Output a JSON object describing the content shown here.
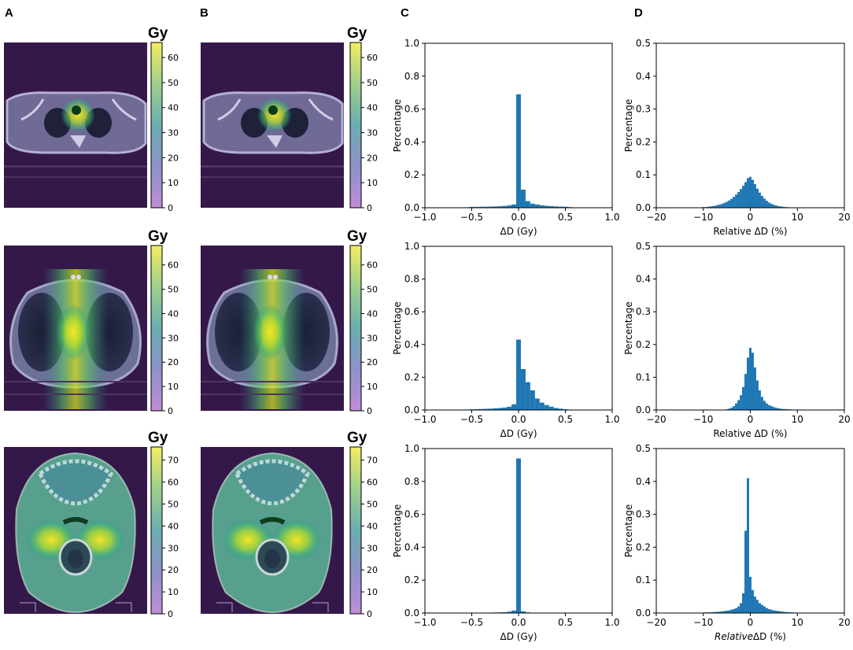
{
  "panel_labels": [
    "A",
    "B",
    "C",
    "D"
  ],
  "colorbars": {
    "unit": "Gy",
    "rows": [
      {
        "ticks": [
          "0",
          "10",
          "20",
          "30",
          "40",
          "50",
          "60"
        ],
        "max": 66
      },
      {
        "ticks": [
          "0",
          "10",
          "20",
          "30",
          "40",
          "50",
          "60"
        ],
        "max": 68
      },
      {
        "ticks": [
          "0",
          "10",
          "20",
          "30",
          "40",
          "50",
          "60",
          "70"
        ],
        "max": 76
      }
    ]
  },
  "ct_images": [
    {
      "row": 0,
      "site": "upper thorax / neck base axial slice"
    },
    {
      "row": 1,
      "site": "thorax axial slice"
    },
    {
      "row": 2,
      "site": "head axial slice"
    }
  ],
  "chart_data": [
    {
      "type": "bar",
      "panel": "C",
      "row": 0,
      "xlabel": "ΔD (Gy)",
      "ylabel": "Percentage",
      "xlim": [
        -1.0,
        1.0
      ],
      "ylim": [
        0.0,
        1.0
      ],
      "xticks": [
        "−1.0",
        "−0.5",
        "0.0",
        "0.5",
        "1.0"
      ],
      "yticks": [
        "0.0",
        "0.2",
        "0.4",
        "0.6",
        "0.8",
        "1.0"
      ],
      "bin_width": 0.05,
      "bins": [
        [
          -0.55,
          0.003
        ],
        [
          -0.5,
          0.005
        ],
        [
          -0.45,
          0.005
        ],
        [
          -0.4,
          0.006
        ],
        [
          -0.35,
          0.006
        ],
        [
          -0.3,
          0.007
        ],
        [
          -0.25,
          0.008
        ],
        [
          -0.2,
          0.009
        ],
        [
          -0.15,
          0.011
        ],
        [
          -0.1,
          0.014
        ],
        [
          -0.05,
          0.02
        ],
        [
          0.0,
          0.69
        ],
        [
          0.05,
          0.11
        ],
        [
          0.1,
          0.04
        ],
        [
          0.15,
          0.025
        ],
        [
          0.2,
          0.02
        ],
        [
          0.25,
          0.015
        ],
        [
          0.3,
          0.012
        ],
        [
          0.35,
          0.01
        ],
        [
          0.4,
          0.008
        ],
        [
          0.45,
          0.007
        ],
        [
          0.5,
          0.006
        ],
        [
          0.55,
          0.004
        ]
      ]
    },
    {
      "type": "bar",
      "panel": "D",
      "row": 0,
      "xlabel": "Relative ΔD (%)",
      "ylabel": "Percentage",
      "xlim": [
        -20,
        20
      ],
      "ylim": [
        0.0,
        0.5
      ],
      "xticks": [
        "−20",
        "−10",
        "0",
        "10",
        "20"
      ],
      "yticks": [
        "0.0",
        "0.1",
        "0.2",
        "0.3",
        "0.4",
        "0.5"
      ],
      "bin_width": 0.5,
      "bins": [
        [
          -11.0,
          0.001
        ],
        [
          -10.5,
          0.001
        ],
        [
          -10.0,
          0.002
        ],
        [
          -9.5,
          0.002
        ],
        [
          -9.0,
          0.003
        ],
        [
          -8.5,
          0.004
        ],
        [
          -8.0,
          0.005
        ],
        [
          -7.5,
          0.006
        ],
        [
          -7.0,
          0.008
        ],
        [
          -6.5,
          0.01
        ],
        [
          -6.0,
          0.012
        ],
        [
          -5.5,
          0.015
        ],
        [
          -5.0,
          0.018
        ],
        [
          -4.5,
          0.022
        ],
        [
          -4.0,
          0.027
        ],
        [
          -3.5,
          0.033
        ],
        [
          -3.0,
          0.04
        ],
        [
          -2.5,
          0.048
        ],
        [
          -2.0,
          0.057
        ],
        [
          -1.5,
          0.067
        ],
        [
          -1.0,
          0.078
        ],
        [
          -0.5,
          0.09
        ],
        [
          0.0,
          0.094
        ],
        [
          0.5,
          0.085
        ],
        [
          1.0,
          0.072
        ],
        [
          1.5,
          0.058
        ],
        [
          2.0,
          0.046
        ],
        [
          2.5,
          0.036
        ],
        [
          3.0,
          0.028
        ],
        [
          3.5,
          0.021
        ],
        [
          4.0,
          0.016
        ],
        [
          4.5,
          0.012
        ],
        [
          5.0,
          0.009
        ],
        [
          5.5,
          0.007
        ],
        [
          6.0,
          0.005
        ],
        [
          6.5,
          0.004
        ],
        [
          7.0,
          0.003
        ],
        [
          7.5,
          0.002
        ],
        [
          8.0,
          0.002
        ],
        [
          8.5,
          0.001
        ],
        [
          9.0,
          0.001
        ],
        [
          9.5,
          0.001
        ]
      ]
    },
    {
      "type": "bar",
      "panel": "C",
      "row": 1,
      "xlabel": "ΔD (Gy)",
      "ylabel": "Percentage",
      "xlim": [
        -1.0,
        1.0
      ],
      "ylim": [
        0.0,
        1.0
      ],
      "xticks": [
        "−1.0",
        "−0.5",
        "0.0",
        "0.5",
        "1.0"
      ],
      "yticks": [
        "0.0",
        "0.2",
        "0.4",
        "0.6",
        "0.8",
        "1.0"
      ],
      "bin_width": 0.05,
      "bins": [
        [
          -0.6,
          0.002
        ],
        [
          -0.55,
          0.003
        ],
        [
          -0.5,
          0.004
        ],
        [
          -0.45,
          0.005
        ],
        [
          -0.4,
          0.006
        ],
        [
          -0.35,
          0.007
        ],
        [
          -0.3,
          0.008
        ],
        [
          -0.25,
          0.01
        ],
        [
          -0.2,
          0.012
        ],
        [
          -0.15,
          0.015
        ],
        [
          -0.1,
          0.02
        ],
        [
          -0.05,
          0.035
        ],
        [
          0.0,
          0.43
        ],
        [
          0.05,
          0.25
        ],
        [
          0.1,
          0.17
        ],
        [
          0.15,
          0.12
        ],
        [
          0.2,
          0.07
        ],
        [
          0.25,
          0.045
        ],
        [
          0.3,
          0.03
        ],
        [
          0.35,
          0.02
        ],
        [
          0.4,
          0.012
        ],
        [
          0.45,
          0.008
        ],
        [
          0.5,
          0.005
        ]
      ]
    },
    {
      "type": "bar",
      "panel": "D",
      "row": 1,
      "xlabel": "Relative ΔD (%)",
      "ylabel": "Percentage",
      "xlim": [
        -20,
        20
      ],
      "ylim": [
        0.0,
        0.5
      ],
      "xticks": [
        "−20",
        "−10",
        "0",
        "10",
        "20"
      ],
      "yticks": [
        "0.0",
        "0.1",
        "0.2",
        "0.3",
        "0.4",
        "0.5"
      ],
      "bin_width": 0.5,
      "bins": [
        [
          -5.0,
          0.002
        ],
        [
          -4.5,
          0.004
        ],
        [
          -4.0,
          0.007
        ],
        [
          -3.5,
          0.012
        ],
        [
          -3.0,
          0.02
        ],
        [
          -2.5,
          0.03
        ],
        [
          -2.0,
          0.045
        ],
        [
          -1.5,
          0.07
        ],
        [
          -1.0,
          0.11
        ],
        [
          -0.5,
          0.16
        ],
        [
          0.0,
          0.19
        ],
        [
          0.5,
          0.175
        ],
        [
          1.0,
          0.13
        ],
        [
          1.5,
          0.09
        ],
        [
          2.0,
          0.06
        ],
        [
          2.5,
          0.04
        ],
        [
          3.0,
          0.028
        ],
        [
          3.5,
          0.02
        ],
        [
          4.0,
          0.015
        ],
        [
          4.5,
          0.012
        ],
        [
          5.0,
          0.009
        ],
        [
          5.5,
          0.007
        ],
        [
          6.0,
          0.005
        ],
        [
          6.5,
          0.004
        ],
        [
          7.0,
          0.003
        ],
        [
          7.5,
          0.003
        ],
        [
          8.0,
          0.002
        ],
        [
          8.5,
          0.002
        ],
        [
          9.0,
          0.001
        ],
        [
          9.5,
          0.001
        ]
      ]
    },
    {
      "type": "bar",
      "panel": "C",
      "row": 2,
      "xlabel": "ΔD (Gy)",
      "ylabel": "Percentage",
      "xlim": [
        -1.0,
        1.0
      ],
      "ylim": [
        0.0,
        1.0
      ],
      "xticks": [
        "−1.0",
        "−0.5",
        "0.0",
        "0.5",
        "1.0"
      ],
      "yticks": [
        "0.0",
        "0.2",
        "0.4",
        "0.6",
        "0.8",
        "1.0"
      ],
      "bin_width": 0.05,
      "bins": [
        [
          -0.25,
          0.003
        ],
        [
          -0.2,
          0.004
        ],
        [
          -0.15,
          0.005
        ],
        [
          -0.1,
          0.008
        ],
        [
          -0.05,
          0.015
        ],
        [
          0.0,
          0.94
        ],
        [
          0.05,
          0.01
        ],
        [
          0.1,
          0.004
        ],
        [
          0.15,
          0.002
        ]
      ]
    },
    {
      "type": "bar",
      "panel": "D",
      "row": 2,
      "xlabel": "RelativeΔD (%)",
      "xlabel_italic_part": "Relative",
      "xlabel_rest": "ΔD (%)",
      "ylabel": "Percentage",
      "xlim": [
        -20,
        20
      ],
      "ylim": [
        0.0,
        0.5
      ],
      "xticks": [
        "−20",
        "−10",
        "0",
        "10",
        "20"
      ],
      "yticks": [
        "0.0",
        "0.1",
        "0.2",
        "0.3",
        "0.4",
        "0.5"
      ],
      "bin_width": 0.5,
      "bins": [
        [
          -11.0,
          0.001
        ],
        [
          -10.5,
          0.001
        ],
        [
          -10.0,
          0.001
        ],
        [
          -9.5,
          0.002
        ],
        [
          -9.0,
          0.002
        ],
        [
          -8.5,
          0.002
        ],
        [
          -8.0,
          0.003
        ],
        [
          -7.5,
          0.003
        ],
        [
          -7.0,
          0.004
        ],
        [
          -6.5,
          0.004
        ],
        [
          -6.0,
          0.005
        ],
        [
          -5.5,
          0.006
        ],
        [
          -5.0,
          0.007
        ],
        [
          -4.5,
          0.008
        ],
        [
          -4.0,
          0.01
        ],
        [
          -3.5,
          0.012
        ],
        [
          -3.0,
          0.015
        ],
        [
          -2.5,
          0.02
        ],
        [
          -2.0,
          0.03
        ],
        [
          -1.5,
          0.06
        ],
        [
          -1.0,
          0.25
        ],
        [
          -0.5,
          0.41
        ],
        [
          0.0,
          0.11
        ],
        [
          0.5,
          0.07
        ],
        [
          1.0,
          0.05
        ],
        [
          1.5,
          0.04
        ],
        [
          2.0,
          0.03
        ],
        [
          2.5,
          0.025
        ],
        [
          3.0,
          0.02
        ],
        [
          3.5,
          0.015
        ],
        [
          4.0,
          0.012
        ],
        [
          4.5,
          0.01
        ],
        [
          5.0,
          0.008
        ],
        [
          5.5,
          0.007
        ],
        [
          6.0,
          0.006
        ],
        [
          6.5,
          0.005
        ],
        [
          7.0,
          0.004
        ],
        [
          7.5,
          0.003
        ],
        [
          8.0,
          0.003
        ],
        [
          8.5,
          0.002
        ],
        [
          9.0,
          0.002
        ],
        [
          9.5,
          0.001
        ],
        [
          10.0,
          0.001
        ],
        [
          10.5,
          0.001
        ],
        [
          11.0,
          0.001
        ],
        [
          11.5,
          0.001
        ],
        [
          12.0,
          0.001
        ],
        [
          12.5,
          0.001
        ]
      ]
    }
  ],
  "colors": {
    "bar": "#1f77b4",
    "ct_bg": "#35184a",
    "viridis": [
      "#440154",
      "#3b528b",
      "#21918c",
      "#5ec962",
      "#fde725"
    ]
  }
}
